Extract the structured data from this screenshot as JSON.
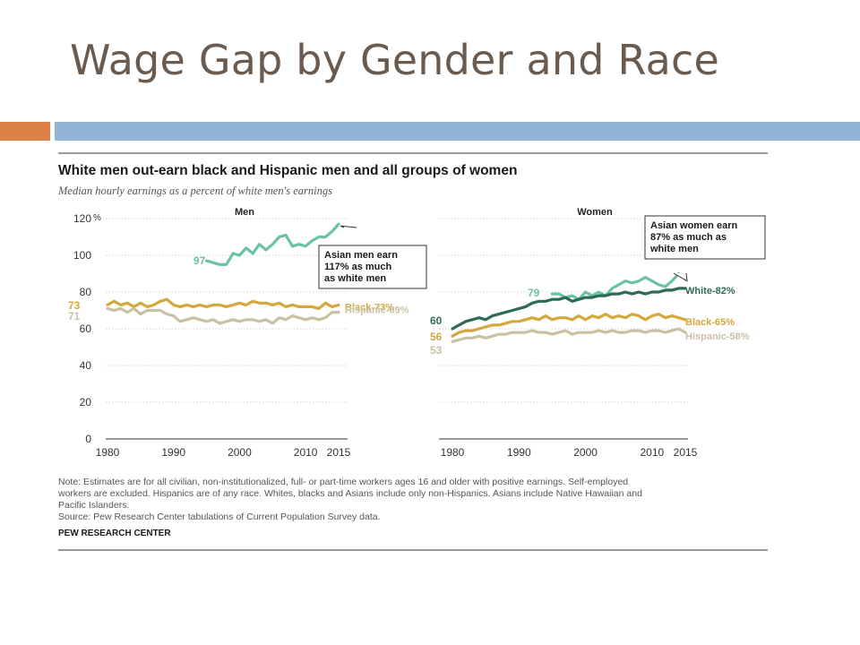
{
  "slide": {
    "title": "Wage Gap by Gender and Race",
    "colors": {
      "title": "#6b5a4e",
      "accent_orange": "#dd8047",
      "accent_blue": "#93b3d7"
    }
  },
  "figure": {
    "headline": "White men out-earn black and Hispanic men and all groups of women",
    "subtitle": "Median hourly earnings as a percent of white men's earnings",
    "note_lines": [
      "Note: Estimates are for all civilian, non-institutionalized, full- or part-time workers ages 16 and older with positive earnings. Self-employed",
      "workers are excluded. Hispanics are of any race. Whites, blacks and Asians include only non-Hispanics. Asians include Native Hawaiian and",
      "Pacific Islanders."
    ],
    "source": "Source: Pew Research Center tabulations of Current Population Survey data.",
    "brand": "PEW RESEARCH CENTER"
  },
  "chart_data": [
    {
      "type": "line",
      "panel": "Men",
      "title": "Men",
      "ylim": [
        0,
        120
      ],
      "yticks": [
        "0",
        "20",
        "40",
        "60",
        "80",
        "100",
        "120"
      ],
      "y_unit": "%",
      "xlim": [
        1980,
        2015
      ],
      "xticks": [
        "1980",
        "1990",
        "2000",
        "2010",
        "2015"
      ],
      "grid": true,
      "series": [
        {
          "name": "Asian",
          "color": "#6cc3a4",
          "start_label": "97",
          "x": [
            1995,
            1996,
            1997,
            1998,
            1999,
            2000,
            2001,
            2002,
            2003,
            2004,
            2005,
            2006,
            2007,
            2008,
            2009,
            2010,
            2011,
            2012,
            2013,
            2014,
            2015
          ],
          "values": [
            97,
            96,
            95,
            95,
            101,
            100,
            104,
            101,
            106,
            103,
            106,
            110,
            111,
            105,
            106,
            105,
            108,
            110,
            110,
            113,
            117
          ]
        },
        {
          "name": "Black",
          "end_label": "Black-73%",
          "start_label": "73",
          "color": "#d3a83c",
          "x": [
            1980,
            1981,
            1982,
            1983,
            1984,
            1985,
            1986,
            1987,
            1988,
            1989,
            1990,
            1991,
            1992,
            1993,
            1994,
            1995,
            1996,
            1997,
            1998,
            1999,
            2000,
            2001,
            2002,
            2003,
            2004,
            2005,
            2006,
            2007,
            2008,
            2009,
            2010,
            2011,
            2012,
            2013,
            2014,
            2015
          ],
          "values": [
            73,
            75,
            73,
            74,
            72,
            74,
            72,
            73,
            75,
            76,
            73,
            72,
            73,
            72,
            73,
            72,
            73,
            73,
            72,
            73,
            74,
            73,
            75,
            74,
            74,
            73,
            74,
            72,
            73,
            72,
            72,
            72,
            71,
            74,
            72,
            73
          ]
        },
        {
          "name": "Hispanic",
          "end_label": "Hispanic-69%",
          "start_label": "71",
          "color": "#c9c1a4",
          "x": [
            1980,
            1981,
            1982,
            1983,
            1984,
            1985,
            1986,
            1987,
            1988,
            1989,
            1990,
            1991,
            1992,
            1993,
            1994,
            1995,
            1996,
            1997,
            1998,
            1999,
            2000,
            2001,
            2002,
            2003,
            2004,
            2005,
            2006,
            2007,
            2008,
            2009,
            2010,
            2011,
            2012,
            2013,
            2014,
            2015
          ],
          "values": [
            71,
            70,
            71,
            69,
            71,
            68,
            70,
            70,
            70,
            68,
            67,
            64,
            65,
            66,
            65,
            64,
            65,
            63,
            64,
            65,
            64,
            65,
            65,
            64,
            65,
            63,
            66,
            65,
            67,
            66,
            65,
            66,
            65,
            66,
            69,
            69
          ]
        }
      ],
      "annotation": {
        "text_lines": [
          "Asian men earn",
          "117% as much",
          "as white men"
        ],
        "points_to": [
          2015,
          117
        ]
      }
    },
    {
      "type": "line",
      "panel": "Women",
      "title": "Women",
      "ylim": [
        0,
        120
      ],
      "xlim": [
        1980,
        2015
      ],
      "xticks": [
        "1980",
        "1990",
        "2000",
        "2010",
        "2015"
      ],
      "grid": true,
      "series": [
        {
          "name": "Asian",
          "color": "#6cc3a4",
          "start_label": "79",
          "x": [
            1995,
            1996,
            1997,
            1998,
            1999,
            2000,
            2001,
            2002,
            2003,
            2004,
            2005,
            2006,
            2007,
            2008,
            2009,
            2010,
            2011,
            2012,
            2013,
            2014,
            2015
          ],
          "values": [
            79,
            79,
            77,
            78,
            76,
            80,
            78,
            80,
            78,
            82,
            84,
            86,
            85,
            86,
            88,
            86,
            84,
            83,
            86,
            90,
            87
          ]
        },
        {
          "name": "White",
          "end_label": "White-82%",
          "start_label": "60",
          "color": "#2e6b57",
          "x": [
            1980,
            1981,
            1982,
            1983,
            1984,
            1985,
            1986,
            1987,
            1988,
            1989,
            1990,
            1991,
            1992,
            1993,
            1994,
            1995,
            1996,
            1997,
            1998,
            1999,
            2000,
            2001,
            2002,
            2003,
            2004,
            2005,
            2006,
            2007,
            2008,
            2009,
            2010,
            2011,
            2012,
            2013,
            2014,
            2015
          ],
          "values": [
            60,
            62,
            64,
            65,
            66,
            65,
            67,
            68,
            69,
            70,
            71,
            72,
            74,
            75,
            75,
            76,
            76,
            77,
            75,
            76,
            77,
            77,
            78,
            78,
            79,
            79,
            80,
            79,
            80,
            79,
            80,
            80,
            81,
            81,
            82,
            82
          ]
        },
        {
          "name": "Black",
          "end_label": "Black-65%",
          "start_label": "56",
          "color": "#d3a83c",
          "x": [
            1980,
            1981,
            1982,
            1983,
            1984,
            1985,
            1986,
            1987,
            1988,
            1989,
            1990,
            1991,
            1992,
            1993,
            1994,
            1995,
            1996,
            1997,
            1998,
            1999,
            2000,
            2001,
            2002,
            2003,
            2004,
            2005,
            2006,
            2007,
            2008,
            2009,
            2010,
            2011,
            2012,
            2013,
            2014,
            2015
          ],
          "values": [
            56,
            58,
            59,
            59,
            60,
            61,
            62,
            62,
            63,
            64,
            64,
            65,
            66,
            65,
            67,
            65,
            66,
            66,
            65,
            67,
            65,
            67,
            66,
            68,
            66,
            67,
            66,
            68,
            67,
            65,
            67,
            68,
            66,
            67,
            66,
            65
          ]
        },
        {
          "name": "Hispanic",
          "end_label": "Hispanic-58%",
          "start_label": "53",
          "color": "#c9c1a4",
          "x": [
            1980,
            1981,
            1982,
            1983,
            1984,
            1985,
            1986,
            1987,
            1988,
            1989,
            1990,
            1991,
            1992,
            1993,
            1994,
            1995,
            1996,
            1997,
            1998,
            1999,
            2000,
            2001,
            2002,
            2003,
            2004,
            2005,
            2006,
            2007,
            2008,
            2009,
            2010,
            2011,
            2012,
            2013,
            2014,
            2015
          ],
          "values": [
            53,
            54,
            55,
            55,
            56,
            55,
            56,
            57,
            57,
            58,
            58,
            58,
            59,
            58,
            58,
            57,
            58,
            59,
            57,
            58,
            58,
            58,
            59,
            58,
            59,
            58,
            58,
            59,
            59,
            58,
            59,
            59,
            58,
            59,
            60,
            58
          ]
        }
      ],
      "annotation": {
        "text_lines": [
          "Asian women earn",
          "87% as much as",
          "white men"
        ],
        "points_to": [
          2015,
          87
        ]
      }
    }
  ]
}
